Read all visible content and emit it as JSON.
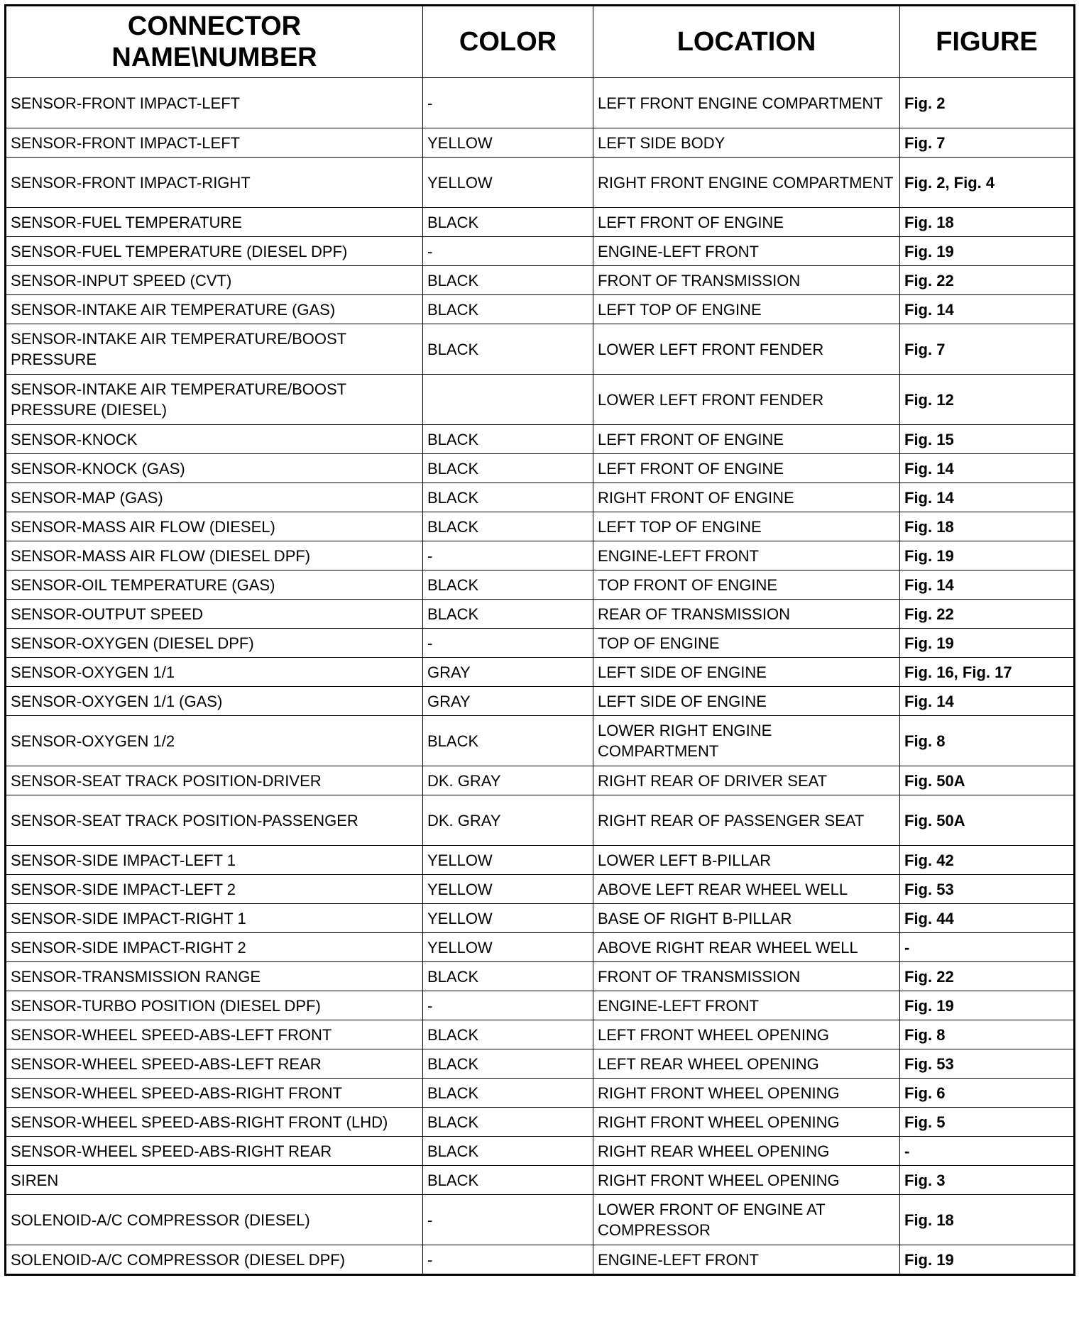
{
  "table": {
    "header": [
      "CONNECTOR\nNAME\\NUMBER",
      "COLOR",
      "LOCATION",
      "FIGURE"
    ],
    "rows": [
      [
        "SENSOR-FRONT IMPACT-LEFT",
        "-",
        "LEFT FRONT ENGINE COMPARTMENT",
        "Fig. 2"
      ],
      [
        "SENSOR-FRONT IMPACT-LEFT",
        "YELLOW",
        "LEFT SIDE BODY",
        "Fig. 7"
      ],
      [
        "SENSOR-FRONT IMPACT-RIGHT",
        "YELLOW",
        "RIGHT FRONT ENGINE COMPARTMENT",
        "Fig. 2, Fig. 4"
      ],
      [
        "SENSOR-FUEL TEMPERATURE",
        "BLACK",
        "LEFT FRONT OF ENGINE",
        "Fig. 18"
      ],
      [
        "SENSOR-FUEL TEMPERATURE (DIESEL DPF)",
        "-",
        "ENGINE-LEFT FRONT",
        "Fig. 19"
      ],
      [
        "SENSOR-INPUT SPEED (CVT)",
        "BLACK",
        "FRONT OF TRANSMISSION",
        "Fig. 22"
      ],
      [
        "SENSOR-INTAKE AIR TEMPERATURE (GAS)",
        "BLACK",
        "LEFT TOP OF ENGINE",
        "Fig. 14"
      ],
      [
        "SENSOR-INTAKE AIR TEMPERATURE/BOOST PRESSURE",
        "BLACK",
        "LOWER LEFT FRONT FENDER",
        "Fig. 7"
      ],
      [
        "SENSOR-INTAKE AIR TEMPERATURE/BOOST PRESSURE (DIESEL)",
        null,
        "LOWER LEFT FRONT FENDER",
        "Fig. 12"
      ],
      [
        "SENSOR-KNOCK",
        "BLACK",
        "LEFT FRONT OF ENGINE",
        "Fig. 15"
      ],
      [
        "SENSOR-KNOCK (GAS)",
        "BLACK",
        "LEFT FRONT OF ENGINE",
        "Fig. 14"
      ],
      [
        "SENSOR-MAP (GAS)",
        "BLACK",
        "RIGHT FRONT OF ENGINE",
        "Fig. 14"
      ],
      [
        "SENSOR-MASS AIR FLOW (DIESEL)",
        "BLACK",
        "LEFT TOP OF ENGINE",
        "Fig. 18"
      ],
      [
        "SENSOR-MASS AIR FLOW (DIESEL DPF)",
        "-",
        "ENGINE-LEFT FRONT",
        "Fig. 19"
      ],
      [
        "SENSOR-OIL TEMPERATURE (GAS)",
        "BLACK",
        "TOP FRONT OF ENGINE",
        "Fig. 14"
      ],
      [
        "SENSOR-OUTPUT SPEED",
        "BLACK",
        "REAR OF TRANSMISSION",
        "Fig. 22"
      ],
      [
        "SENSOR-OXYGEN (DIESEL DPF)",
        "-",
        "TOP OF ENGINE",
        "Fig. 19"
      ],
      [
        "SENSOR-OXYGEN 1/1",
        "GRAY",
        "LEFT SIDE OF ENGINE",
        "Fig. 16, Fig. 17"
      ],
      [
        "SENSOR-OXYGEN 1/1 (GAS)",
        "GRAY",
        "LEFT SIDE OF ENGINE",
        "Fig. 14"
      ],
      [
        "SENSOR-OXYGEN 1/2",
        "BLACK",
        "LOWER RIGHT ENGINE COMPARTMENT",
        "Fig. 8"
      ],
      [
        "SENSOR-SEAT TRACK POSITION-DRIVER",
        "DK. GRAY",
        "RIGHT REAR OF DRIVER SEAT",
        "Fig. 50A"
      ],
      [
        "SENSOR-SEAT TRACK POSITION-PASSENGER",
        "DK. GRAY",
        "RIGHT REAR OF PASSENGER SEAT",
        "Fig. 50A"
      ],
      [
        "SENSOR-SIDE IMPACT-LEFT 1",
        "YELLOW",
        "LOWER LEFT B-PILLAR",
        "Fig. 42"
      ],
      [
        "SENSOR-SIDE IMPACT-LEFT 2",
        "YELLOW",
        "ABOVE LEFT REAR WHEEL WELL",
        "Fig. 53"
      ],
      [
        "SENSOR-SIDE IMPACT-RIGHT 1",
        "YELLOW",
        "BASE OF RIGHT B-PILLAR",
        "Fig. 44"
      ],
      [
        "SENSOR-SIDE IMPACT-RIGHT 2",
        "YELLOW",
        "ABOVE RIGHT REAR WHEEL WELL",
        "-"
      ],
      [
        "SENSOR-TRANSMISSION RANGE",
        "BLACK",
        "FRONT OF TRANSMISSION",
        "Fig. 22"
      ],
      [
        "SENSOR-TURBO POSITION (DIESEL DPF)",
        "-",
        "ENGINE-LEFT FRONT",
        "Fig. 19"
      ],
      [
        "SENSOR-WHEEL SPEED-ABS-LEFT FRONT",
        "BLACK",
        "LEFT FRONT WHEEL OPENING",
        "Fig. 8"
      ],
      [
        "SENSOR-WHEEL SPEED-ABS-LEFT REAR",
        "BLACK",
        "LEFT REAR WHEEL OPENING",
        "Fig. 53"
      ],
      [
        "SENSOR-WHEEL SPEED-ABS-RIGHT FRONT",
        "BLACK",
        "RIGHT FRONT WHEEL OPENING",
        "Fig. 6"
      ],
      [
        "SENSOR-WHEEL SPEED-ABS-RIGHT FRONT (LHD)",
        "BLACK",
        "RIGHT FRONT WHEEL OPENING",
        "Fig. 5"
      ],
      [
        "SENSOR-WHEEL SPEED-ABS-RIGHT REAR",
        "BLACK",
        "RIGHT REAR WHEEL OPENING",
        "-"
      ],
      [
        "SIREN",
        "BLACK",
        "RIGHT FRONT WHEEL OPENING",
        "Fig. 3"
      ],
      [
        "SOLENOID-A/C COMPRESSOR (DIESEL)",
        "-",
        "LOWER FRONT OF ENGINE AT COMPRESSOR",
        "Fig. 18"
      ],
      [
        "SOLENOID-A/C COMPRESSOR (DIESEL DPF)",
        "-",
        "ENGINE-LEFT FRONT",
        "Fig. 19"
      ]
    ]
  }
}
